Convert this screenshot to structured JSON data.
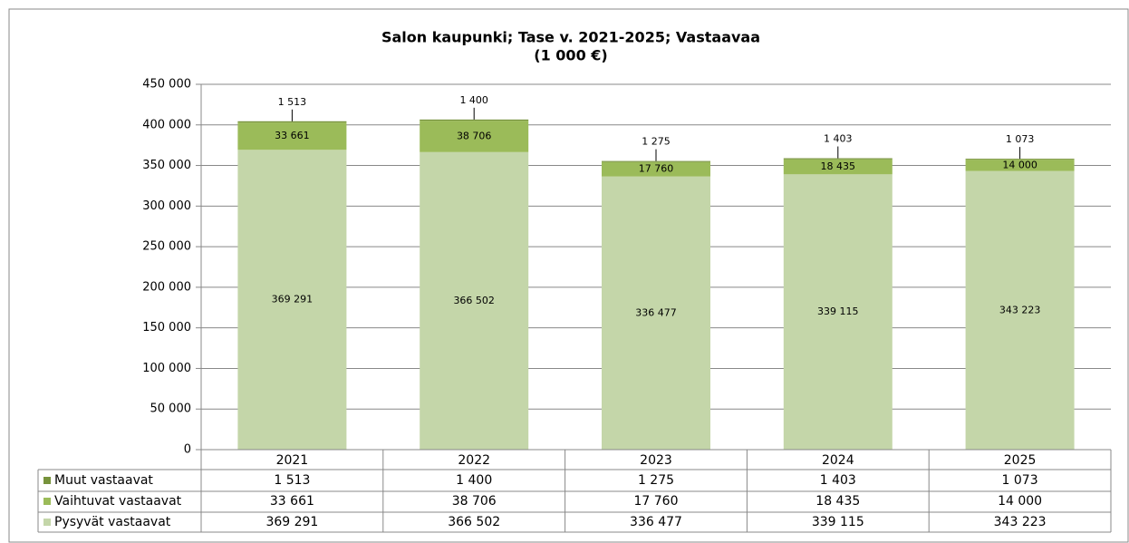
{
  "chart_data": {
    "type": "bar",
    "stacked": true,
    "title": "Salon kaupunki; Tase v. 2021-2025; Vastaavaa",
    "subtitle": "(1 000 €)",
    "categories": [
      "2021",
      "2022",
      "2023",
      "2024",
      "2025"
    ],
    "series": [
      {
        "name": "Muut vastaavat",
        "color": "#77933c",
        "values": [
          1513,
          1400,
          1275,
          1403,
          1073
        ],
        "value_labels": [
          "1 513",
          "1 400",
          "1 275",
          "1 403",
          "1 073"
        ]
      },
      {
        "name": "Vaihtuvat vastaavat",
        "color": "#9bbb59",
        "values": [
          33661,
          38706,
          17760,
          18435,
          14000
        ],
        "value_labels": [
          "33 661",
          "38 706",
          "17 760",
          "18 435",
          "14 000"
        ]
      },
      {
        "name": "Pysyvät vastaavat",
        "color": "#c4d6a9",
        "values": [
          369291,
          366502,
          336477,
          339115,
          343223
        ],
        "value_labels": [
          "369 291",
          "366 502",
          "336 477",
          "339 115",
          "343 223"
        ]
      }
    ],
    "ylim": [
      0,
      450000
    ],
    "yticks": [
      0,
      {
        "value": 50000,
        "label": "50 000"
      },
      {
        "value": 100000,
        "label": "100 000"
      },
      {
        "value": 150000,
        "label": "150 000"
      },
      {
        "value": 200000,
        "label": "200 000"
      },
      {
        "value": 250000,
        "label": "250 000"
      },
      {
        "value": 300000,
        "label": "300 000"
      },
      {
        "value": 350000,
        "label": "350 000"
      },
      {
        "value": 400000,
        "label": "400 000"
      },
      {
        "value": 450000,
        "label": "450 000"
      }
    ],
    "grid": true,
    "legend": "table"
  }
}
